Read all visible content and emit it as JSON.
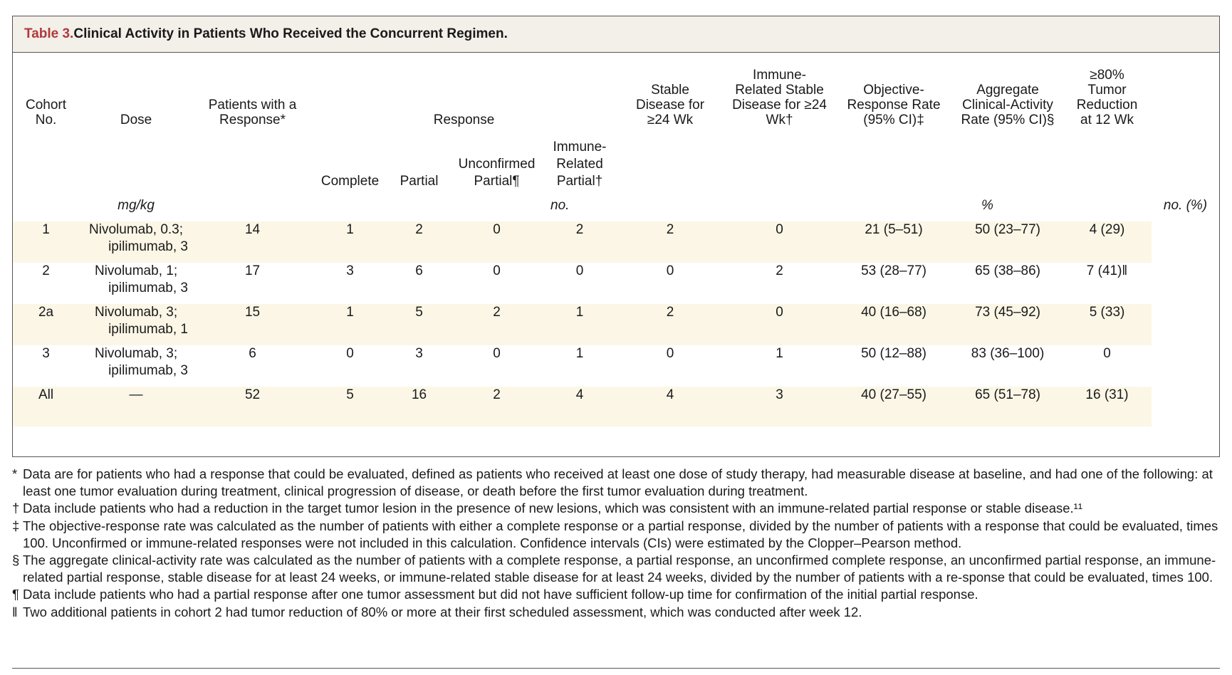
{
  "title": {
    "label": "Table 3.",
    "text": " Clinical Activity in Patients Who Received the Concurrent Regimen."
  },
  "headers": {
    "cohort": "Cohort No.",
    "dose": "Dose",
    "patients": "Patients with a Response*",
    "response": "Response",
    "stable": "Stable Disease for ≥24 Wk",
    "immune_stable": "Immune-Related Stable Disease for ≥24 Wk†",
    "orr": "Objective-Response Rate (95% CI)‡",
    "acar": "Aggregate Clinical-Activity Rate (95% CI)§",
    "tumor": "≥80% Tumor Reduction at 12 Wk",
    "complete": "Complete",
    "partial": "Partial",
    "unconfirmed": "Unconfirmed Partial¶",
    "immune_partial": "Immune-Related Partial†"
  },
  "units": {
    "dose": "mg/kg",
    "counts": "no.",
    "rates": "%",
    "tumor": "no. (%)"
  },
  "rows": [
    {
      "cohort": "1",
      "dose1": "Nivolumab, 0.3;",
      "dose2": "ipilimumab, 3",
      "patients": "14",
      "complete": "1",
      "partial": "2",
      "unconfirmed": "0",
      "immune_partial": "2",
      "stable": "2",
      "immune_stable": "0",
      "orr": "21 (5–51)",
      "acar": "50 (23–77)",
      "tumor": "4 (29)"
    },
    {
      "cohort": "2",
      "dose1": "Nivolumab, 1;",
      "dose2": "ipilimumab, 3",
      "patients": "17",
      "complete": "3",
      "partial": "6",
      "unconfirmed": "0",
      "immune_partial": "0",
      "stable": "0",
      "immune_stable": "2",
      "orr": "53 (28–77)",
      "acar": "65 (38–86)",
      "tumor": "7 (41)‖"
    },
    {
      "cohort": "2a",
      "dose1": "Nivolumab, 3;",
      "dose2": "ipilimumab, 1",
      "patients": "15",
      "complete": "1",
      "partial": "5",
      "unconfirmed": "2",
      "immune_partial": "1",
      "stable": "2",
      "immune_stable": "0",
      "orr": "40 (16–68)",
      "acar": "73 (45–92)",
      "tumor": "5 (33)"
    },
    {
      "cohort": "3",
      "dose1": "Nivolumab, 3;",
      "dose2": "ipilimumab, 3",
      "patients": "6",
      "complete": "0",
      "partial": "3",
      "unconfirmed": "0",
      "immune_partial": "1",
      "stable": "0",
      "immune_stable": "1",
      "orr": "50 (12–88)",
      "acar": "83 (36–100)",
      "tumor": "0"
    },
    {
      "cohort": "All",
      "dose1": "—",
      "dose2": "",
      "patients": "52",
      "complete": "5",
      "partial": "16",
      "unconfirmed": "2",
      "immune_partial": "4",
      "stable": "4",
      "immune_stable": "3",
      "orr": "40 (27–55)",
      "acar": "65 (51–78)",
      "tumor": "16 (31)"
    }
  ],
  "footnotes": [
    {
      "sym": "*",
      "text": "Data are for patients who had a response that could be evaluated, defined as patients who received at least one dose of study therapy, had measurable disease at baseline, and had one of the following: at least one tumor evaluation during treatment, clinical progression of disease, or death before the first tumor evaluation during treatment."
    },
    {
      "sym": "†",
      "text": "Data include patients who had a reduction in the target tumor lesion in the presence of new lesions, which was consistent with an immune-related partial response or stable disease.¹¹"
    },
    {
      "sym": "‡",
      "text": "The objective-response rate was calculated as the number of patients with either a complete response or a partial response, divided by the number of patients with a response that could be evaluated, times 100. Unconfirmed or immune-related responses were not included in this calculation. Confidence intervals (CIs) were estimated by the Clopper–Pearson method."
    },
    {
      "sym": "§",
      "text": "The aggregate clinical-activity rate was calculated as the number of patients with a complete response, a partial response, an unconfirmed complete response, an unconfirmed partial response, an immune-related partial response, stable disease for at least 24 weeks, or immune-related stable disease for at least 24 weeks, divided by the number of patients with a re-sponse that could be evaluated, times 100."
    },
    {
      "sym": "¶",
      "text": "Data include patients who had a partial response after one tumor assessment but did not have sufficient follow-up time for confirmation of the initial partial response."
    },
    {
      "sym": "‖",
      "text": "Two additional patients in cohort 2 had tumor reduction of 80% or more at their first scheduled assessment, which was conducted after week 12."
    }
  ]
}
